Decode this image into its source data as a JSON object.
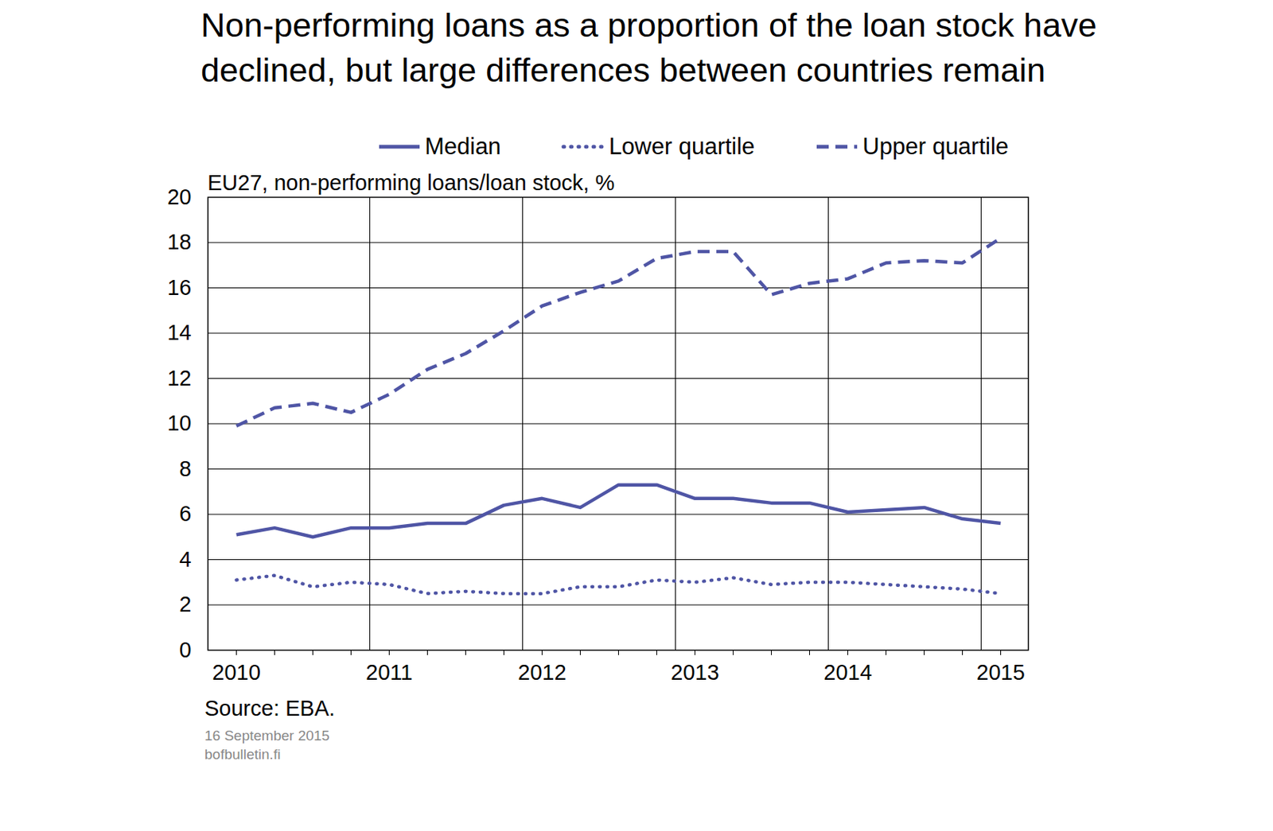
{
  "chart_data": {
    "type": "line",
    "title": "Non-performing loans as a proportion of the loan stock have declined, but large differences between countries remain",
    "subtitle": "EU27, non-performing loans/loan stock, %",
    "source": "Source: EBA.",
    "footer": [
      "16 September  2015",
      "bofbulletin.fi"
    ],
    "categories": [
      "2010",
      null,
      null,
      null,
      "2011",
      null,
      null,
      null,
      "2012",
      null,
      null,
      null,
      "2013",
      null,
      null,
      null,
      "2014",
      null,
      null,
      null,
      "2015"
    ],
    "series": [
      {
        "name": "Median",
        "color": "#4f55a5",
        "line_style": "solid",
        "values": [
          5.1,
          5.4,
          5.0,
          5.4,
          5.4,
          5.6,
          5.6,
          6.4,
          6.7,
          6.3,
          7.3,
          7.3,
          6.7,
          6.7,
          6.5,
          6.5,
          6.1,
          6.2,
          6.3,
          5.8,
          5.6
        ]
      },
      {
        "name": "Lower quartile",
        "color": "#4f55a5",
        "line_style": "dotted",
        "values": [
          3.1,
          3.3,
          2.8,
          3.0,
          2.9,
          2.5,
          2.6,
          2.5,
          2.5,
          2.8,
          2.8,
          3.1,
          3.0,
          3.2,
          2.9,
          3.0,
          3.0,
          2.9,
          2.8,
          2.7,
          2.5
        ]
      },
      {
        "name": "Upper quartile",
        "color": "#4f55a5",
        "line_style": "dashed",
        "values": [
          9.9,
          10.7,
          10.9,
          10.5,
          11.3,
          12.4,
          13.1,
          14.1,
          15.2,
          15.8,
          16.3,
          17.3,
          17.6,
          17.6,
          15.7,
          16.2,
          16.4,
          17.1,
          17.2,
          17.1,
          18.2
        ]
      }
    ],
    "ylim": [
      0,
      20
    ],
    "yticks": [
      0,
      2,
      4,
      6,
      8,
      10,
      12,
      14,
      16,
      18,
      20
    ],
    "grid": true,
    "legend": "top"
  }
}
